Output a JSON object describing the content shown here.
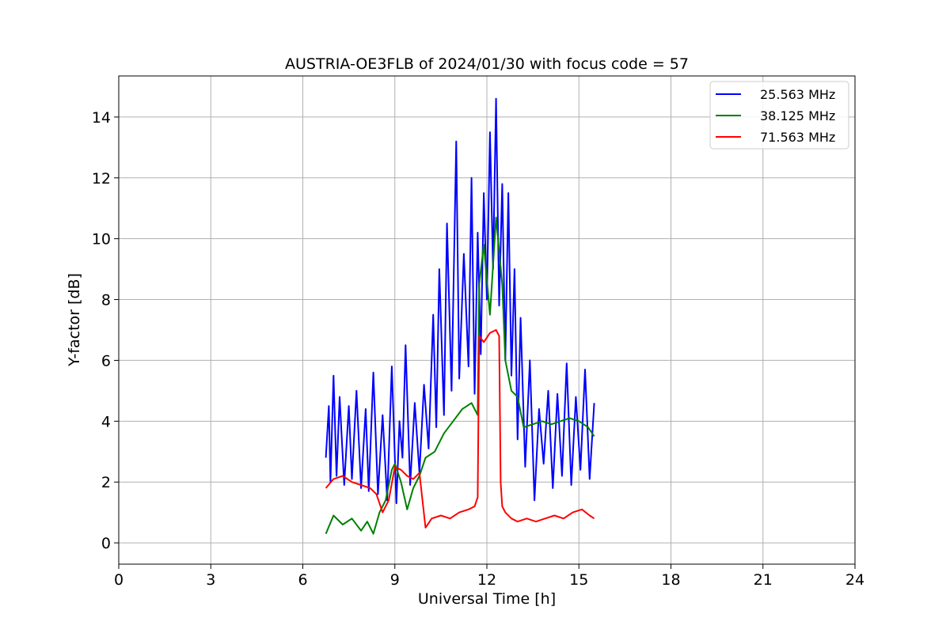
{
  "chart_data": {
    "type": "line",
    "title": "AUSTRIA-OE3FLB of 2024/01/30 with focus code = 57",
    "xlabel": "Universal Time [h]",
    "ylabel": "Y-factor [dB]",
    "xlim": [
      0,
      24
    ],
    "ylim": [
      -0.7,
      15.35
    ],
    "xticks": [
      0,
      3,
      6,
      9,
      12,
      15,
      18,
      21,
      24
    ],
    "yticks": [
      0,
      2,
      4,
      6,
      8,
      10,
      12,
      14
    ],
    "grid": true,
    "legend_position": "top-right",
    "series": [
      {
        "name": "25.563 MHz",
        "color": "#0000ff",
        "x": [
          6.75,
          6.85,
          6.9,
          7.0,
          7.1,
          7.2,
          7.35,
          7.5,
          7.6,
          7.75,
          7.9,
          8.05,
          8.15,
          8.3,
          8.45,
          8.6,
          8.75,
          8.9,
          9.05,
          9.15,
          9.25,
          9.35,
          9.5,
          9.65,
          9.8,
          9.95,
          10.1,
          10.25,
          10.35,
          10.45,
          10.6,
          10.7,
          10.85,
          11.0,
          11.1,
          11.25,
          11.4,
          11.5,
          11.6,
          11.7,
          11.8,
          11.9,
          12.0,
          12.1,
          12.2,
          12.3,
          12.4,
          12.5,
          12.6,
          12.7,
          12.8,
          12.9,
          13.0,
          13.1,
          13.25,
          13.4,
          13.55,
          13.7,
          13.85,
          14.0,
          14.15,
          14.3,
          14.45,
          14.6,
          14.75,
          14.9,
          15.05,
          15.2,
          15.35,
          15.5
        ],
        "y": [
          2.8,
          4.5,
          2.0,
          5.5,
          2.2,
          4.8,
          1.9,
          4.5,
          2.1,
          5.0,
          1.8,
          4.4,
          1.7,
          5.6,
          1.6,
          4.2,
          1.4,
          5.8,
          1.3,
          4.0,
          2.8,
          6.5,
          1.9,
          4.6,
          2.3,
          5.2,
          3.1,
          7.5,
          3.8,
          9.0,
          4.2,
          10.5,
          5.0,
          13.2,
          5.4,
          9.5,
          5.8,
          12.0,
          4.9,
          10.2,
          6.2,
          11.5,
          8.0,
          13.5,
          9.0,
          14.6,
          7.8,
          11.8,
          6.0,
          11.5,
          5.5,
          9.0,
          3.4,
          7.4,
          2.5,
          6.0,
          1.4,
          4.4,
          2.6,
          5.0,
          1.8,
          4.9,
          2.2,
          5.9,
          1.9,
          4.8,
          2.4,
          5.7,
          2.1,
          4.6
        ]
      },
      {
        "name": "38.125 MHz",
        "color": "#008000",
        "x": [
          6.75,
          7.0,
          7.3,
          7.6,
          7.9,
          8.1,
          8.3,
          8.5,
          8.7,
          8.9,
          9.0,
          9.2,
          9.4,
          9.6,
          9.8,
          10.0,
          10.3,
          10.6,
          10.9,
          11.2,
          11.5,
          11.7,
          11.75,
          11.9,
          12.1,
          12.3,
          12.5,
          12.6,
          12.8,
          13.0,
          13.2,
          13.5,
          13.8,
          14.1,
          14.4,
          14.7,
          15.0,
          15.3,
          15.5
        ],
        "y": [
          0.3,
          0.9,
          0.6,
          0.8,
          0.4,
          0.7,
          0.3,
          1.0,
          1.4,
          2.4,
          2.6,
          2.0,
          1.1,
          1.8,
          2.2,
          2.8,
          3.0,
          3.6,
          4.0,
          4.4,
          4.6,
          4.2,
          8.5,
          9.8,
          7.5,
          10.7,
          8.5,
          6.0,
          5.0,
          4.8,
          3.8,
          3.9,
          4.0,
          3.9,
          4.0,
          4.1,
          4.0,
          3.8,
          3.5
        ]
      },
      {
        "name": "71.563 MHz",
        "color": "#ff0000",
        "x": [
          6.75,
          7.0,
          7.3,
          7.6,
          7.9,
          8.2,
          8.4,
          8.6,
          8.8,
          9.0,
          9.2,
          9.4,
          9.6,
          9.8,
          10.0,
          10.2,
          10.5,
          10.8,
          11.1,
          11.4,
          11.6,
          11.7,
          11.75,
          11.9,
          12.1,
          12.3,
          12.4,
          12.45,
          12.5,
          12.6,
          12.8,
          13.0,
          13.3,
          13.6,
          13.9,
          14.2,
          14.5,
          14.8,
          15.1,
          15.35,
          15.5
        ],
        "y": [
          1.8,
          2.1,
          2.2,
          2.0,
          1.9,
          1.8,
          1.6,
          1.0,
          1.4,
          2.5,
          2.4,
          2.2,
          2.1,
          2.3,
          0.5,
          0.8,
          0.9,
          0.8,
          1.0,
          1.1,
          1.2,
          1.5,
          6.8,
          6.6,
          6.9,
          7.0,
          6.8,
          2.0,
          1.2,
          1.0,
          0.8,
          0.7,
          0.8,
          0.7,
          0.8,
          0.9,
          0.8,
          1.0,
          1.1,
          0.9,
          0.8
        ]
      }
    ]
  }
}
